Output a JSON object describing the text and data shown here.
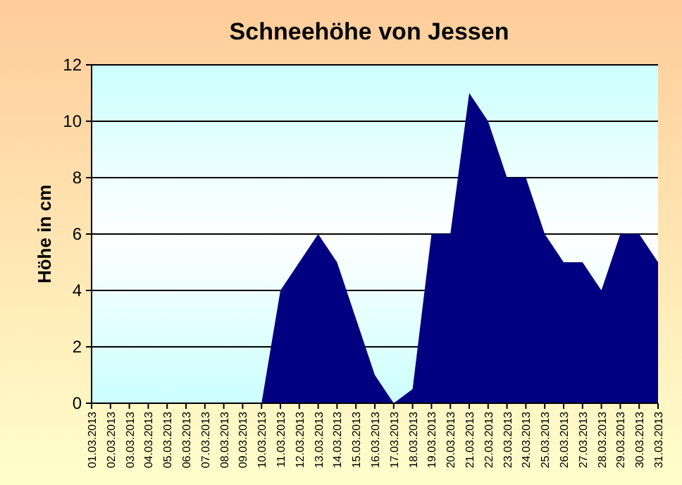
{
  "chart_data": {
    "type": "area",
    "title": "Schneehöhe von Jessen",
    "ylabel": "Höhe in cm",
    "categories": [
      "01.03.2013",
      "02.03.2013",
      "03.03.2013",
      "04.03.2013",
      "05.03.2013",
      "06.03.2013",
      "07.03.2013",
      "08.03.2013",
      "09.03.2013",
      "10.03.2013",
      "11.03.2013",
      "12.03.2013",
      "13.03.2013",
      "14.03.2013",
      "15.03.2013",
      "16.03.2013",
      "17.03.2013",
      "18.03.2013",
      "19.03.2013",
      "20.03.2013",
      "21.03.2013",
      "22.03.2013",
      "23.03.2013",
      "24.03.2013",
      "25.03.2013",
      "26.03.2013",
      "27.03.2013",
      "28.03.2013",
      "29.03.2013",
      "30.03.2013",
      "31.03.2013"
    ],
    "values": [
      0,
      0,
      0,
      0,
      0,
      0,
      0,
      0,
      0,
      0,
      4,
      5,
      6,
      5,
      3,
      1,
      0,
      0.5,
      6,
      6,
      11,
      10,
      8,
      8,
      6,
      5,
      5,
      4,
      6,
      6,
      5
    ],
    "color": "#000080",
    "ylim": [
      0,
      12
    ],
    "yticks": [
      0,
      2,
      4,
      6,
      8,
      10,
      12
    ],
    "grid": "y"
  }
}
